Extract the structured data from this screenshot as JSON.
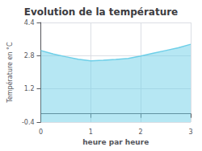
{
  "chart_data": {
    "type": "area",
    "title": "Evolution de la température",
    "xlabel": "heure par heure",
    "ylabel": "Température en °C",
    "x": [
      0,
      0.25,
      0.5,
      0.75,
      1.0,
      1.25,
      1.5,
      1.75,
      2.0,
      2.25,
      2.5,
      2.75,
      3.0
    ],
    "values": [
      3.05,
      2.88,
      2.75,
      2.63,
      2.55,
      2.58,
      2.62,
      2.67,
      2.78,
      2.92,
      3.05,
      3.18,
      3.35
    ],
    "xlim": [
      0,
      3
    ],
    "ylim": [
      -0.4,
      4.4
    ],
    "xticks": [
      0,
      1,
      2,
      3
    ],
    "yticks": [
      -0.4,
      1.2,
      2.8,
      4.4
    ],
    "color": "#6ecfe8",
    "grid": true
  }
}
